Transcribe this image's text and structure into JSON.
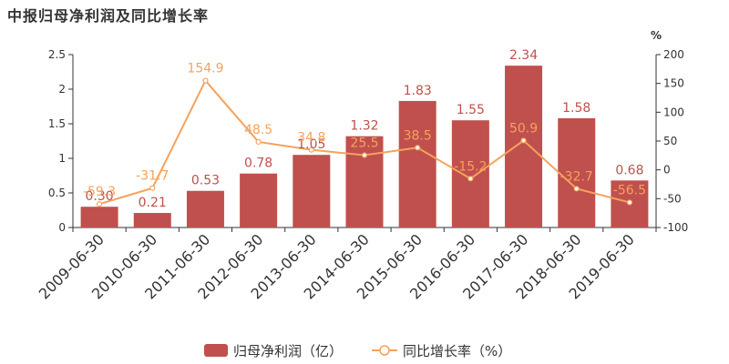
{
  "title": "中报归母净利润及同比增长率",
  "colors": {
    "bar": "#c0504d",
    "line": "#f5a25d",
    "axis": "#333333"
  },
  "chart_data": {
    "type": "bar",
    "categories": [
      "2009-06-30",
      "2010-06-30",
      "2011-06-30",
      "2012-06-30",
      "2013-06-30",
      "2014-06-30",
      "2015-06-30",
      "2016-06-30",
      "2017-06-30",
      "2018-06-30",
      "2019-06-30"
    ],
    "series": [
      {
        "name": "归母净利润（亿）",
        "type": "bar",
        "axis": "left",
        "values": [
          0.3,
          0.21,
          0.53,
          0.78,
          1.05,
          1.32,
          1.83,
          1.55,
          2.34,
          1.58,
          0.68
        ],
        "labels": [
          "0.30",
          "0.21",
          "0.53",
          "0.78",
          "1.05",
          "1.32",
          "1.83",
          "1.55",
          "2.34",
          "1.58",
          "0.68"
        ]
      },
      {
        "name": "同比增长率（%）",
        "type": "line",
        "axis": "right",
        "values": [
          -59.3,
          -31.7,
          154.9,
          48.5,
          34.8,
          25.5,
          38.5,
          -15.2,
          50.9,
          -32.7,
          -56.5
        ],
        "labels": [
          "-59.3",
          "-31.7",
          "154.9",
          "48.5",
          "34.8",
          "25.5",
          "38.5",
          "-15.2",
          "50.9",
          "-32.7",
          "-56.5"
        ]
      }
    ],
    "left_axis": {
      "ylim": [
        0,
        2.5
      ],
      "ticks": [
        "0",
        "0.5",
        "1",
        "1.5",
        "2",
        "2.5"
      ]
    },
    "right_axis": {
      "ylim": [
        -100,
        200
      ],
      "ticks": [
        "-100",
        "-50",
        "0",
        "50",
        "100",
        "150",
        "200"
      ],
      "unit": "%"
    },
    "legend": {
      "position": "bottom",
      "items": [
        "归母净利润（亿）",
        "同比增长率（%）"
      ]
    },
    "grid": false
  }
}
